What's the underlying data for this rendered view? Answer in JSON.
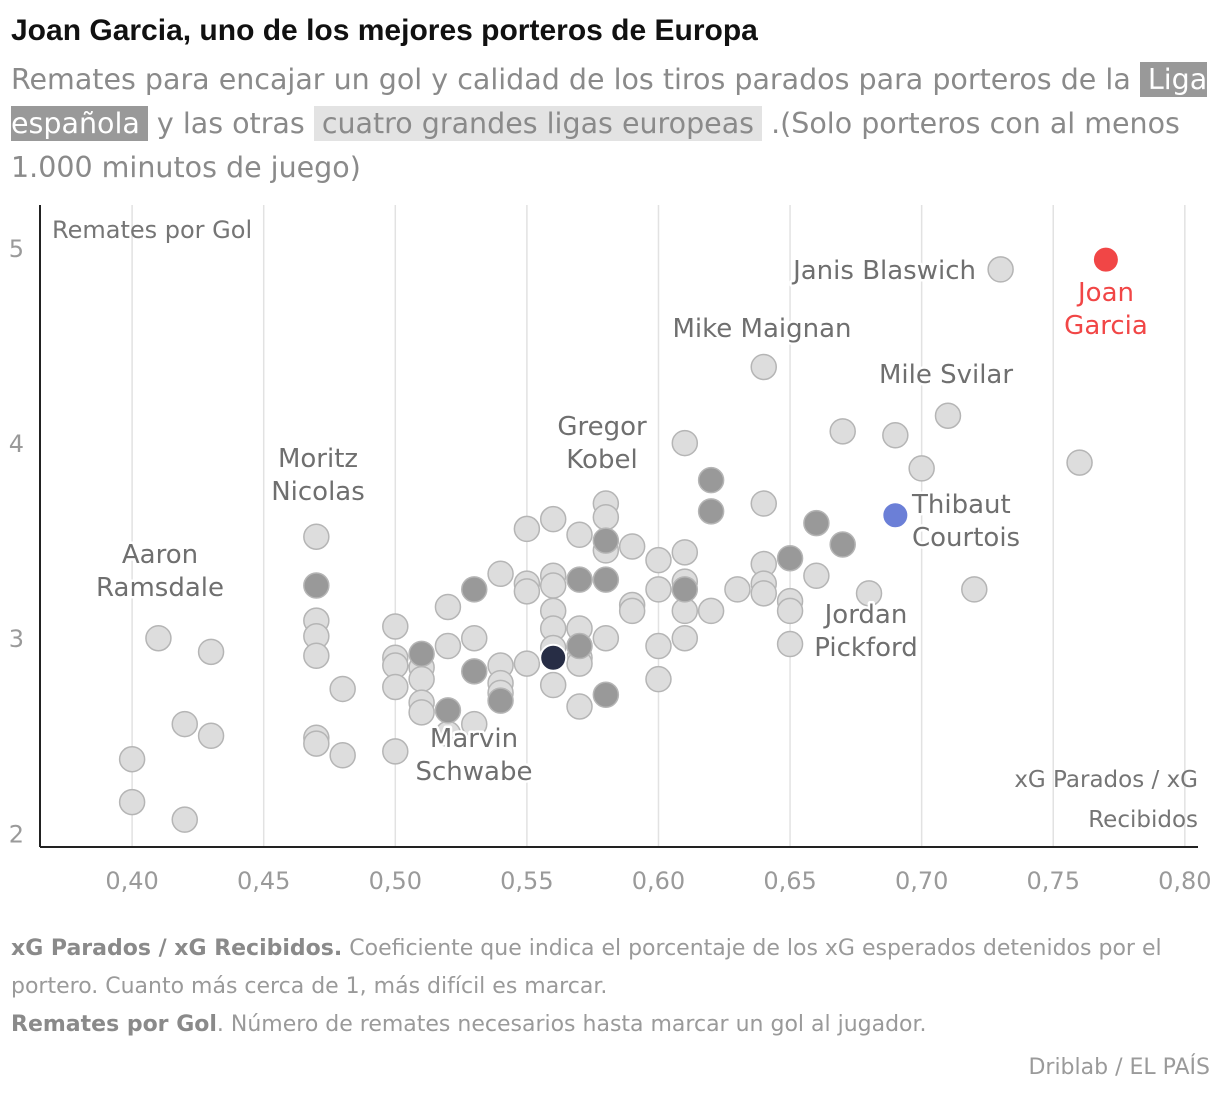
{
  "header": {
    "title": "Joan Garcia, uno de los mejores porteros de Europa",
    "subtitle_part1": "Remates para encajar un gol y calidad de los tiros parados para porteros de la",
    "chip_liga": "Liga española",
    "subtitle_part2": "y las otras",
    "chip_otras": "cuatro grandes ligas europeas",
    "subtitle_part3": ".(Solo porteros con al menos 1.000 minutos de juego)"
  },
  "notes": {
    "xg_term": "xG Parados / xG Recibidos.",
    "xg_text": "Coeficiente que indica el porcentaje de los xG esperados detenidos por el portero. Cuanto más cerca de 1, más difícil es marcar.",
    "rem_term": "Remates por Gol",
    "rem_text": ". Número de remates necesarios hasta marcar un gol al jugador."
  },
  "source": "Driblab / EL PAÍS",
  "colors": {
    "liga": "#999999",
    "otras": "#dddddd",
    "highlight": "#f14646",
    "courtois": "#6b7fd7",
    "dark": "#272d45"
  },
  "chart_data": {
    "type": "scatter",
    "xlabel_lines": [
      "xG Parados / xG",
      "Recibidos"
    ],
    "ylabel": "Remates por Gol",
    "xlim": [
      0.365,
      0.805
    ],
    "ylim": [
      1.93,
      5.22
    ],
    "xticks": [
      0.4,
      0.45,
      0.5,
      0.55,
      0.6,
      0.65,
      0.7,
      0.75,
      0.8
    ],
    "xtick_labels": [
      "0,40",
      "0,45",
      "0,50",
      "0,55",
      "0,60",
      "0,65",
      "0,70",
      "0,75",
      "0,80"
    ],
    "yticks": [
      2,
      3,
      4,
      5
    ],
    "ytick_labels": [
      "2",
      "3",
      "4",
      "5"
    ],
    "grid": "vertical",
    "series": [
      {
        "key": "otras",
        "points": [
          [
            0.4,
            2.38
          ],
          [
            0.4,
            2.16
          ],
          [
            0.41,
            3.0
          ],
          [
            0.42,
            2.56
          ],
          [
            0.42,
            2.07
          ],
          [
            0.43,
            2.93
          ],
          [
            0.43,
            2.5
          ],
          [
            0.47,
            3.52
          ],
          [
            0.47,
            3.09
          ],
          [
            0.47,
            3.01
          ],
          [
            0.47,
            2.91
          ],
          [
            0.47,
            2.49
          ],
          [
            0.47,
            2.46
          ],
          [
            0.48,
            2.74
          ],
          [
            0.48,
            2.4
          ],
          [
            0.5,
            3.06
          ],
          [
            0.5,
            2.9
          ],
          [
            0.5,
            2.86
          ],
          [
            0.5,
            2.75
          ],
          [
            0.5,
            2.42
          ],
          [
            0.51,
            2.85
          ],
          [
            0.51,
            2.79
          ],
          [
            0.51,
            2.67
          ],
          [
            0.51,
            2.62
          ],
          [
            0.52,
            3.16
          ],
          [
            0.52,
            2.96
          ],
          [
            0.52,
            2.51
          ],
          [
            0.53,
            3.0
          ],
          [
            0.53,
            2.56
          ],
          [
            0.54,
            3.33
          ],
          [
            0.54,
            2.86
          ],
          [
            0.54,
            2.77
          ],
          [
            0.54,
            2.72
          ],
          [
            0.55,
            3.56
          ],
          [
            0.55,
            3.28
          ],
          [
            0.55,
            3.24
          ],
          [
            0.55,
            2.87
          ],
          [
            0.56,
            3.61
          ],
          [
            0.56,
            3.32
          ],
          [
            0.56,
            3.27
          ],
          [
            0.56,
            3.14
          ],
          [
            0.56,
            3.05
          ],
          [
            0.56,
            2.95
          ],
          [
            0.56,
            2.76
          ],
          [
            0.57,
            3.53
          ],
          [
            0.57,
            3.05
          ],
          [
            0.57,
            2.9
          ],
          [
            0.57,
            2.87
          ],
          [
            0.57,
            2.65
          ],
          [
            0.58,
            3.69
          ],
          [
            0.58,
            3.62
          ],
          [
            0.58,
            3.45
          ],
          [
            0.58,
            3.0
          ],
          [
            0.59,
            3.47
          ],
          [
            0.59,
            3.17
          ],
          [
            0.59,
            3.14
          ],
          [
            0.6,
            3.4
          ],
          [
            0.6,
            3.25
          ],
          [
            0.6,
            2.96
          ],
          [
            0.6,
            2.79
          ],
          [
            0.61,
            4.0
          ],
          [
            0.61,
            3.44
          ],
          [
            0.61,
            3.29
          ],
          [
            0.61,
            3.14
          ],
          [
            0.61,
            3.0
          ],
          [
            0.62,
            3.14
          ],
          [
            0.63,
            3.25
          ],
          [
            0.64,
            4.39
          ],
          [
            0.64,
            3.69
          ],
          [
            0.64,
            3.38
          ],
          [
            0.64,
            3.28
          ],
          [
            0.64,
            3.23
          ],
          [
            0.65,
            3.19
          ],
          [
            0.65,
            3.14
          ],
          [
            0.65,
            2.97
          ],
          [
            0.66,
            3.32
          ],
          [
            0.67,
            4.06
          ],
          [
            0.68,
            3.23
          ],
          [
            0.69,
            4.04
          ],
          [
            0.7,
            3.87
          ],
          [
            0.71,
            4.14
          ],
          [
            0.72,
            3.25
          ],
          [
            0.73,
            4.89
          ],
          [
            0.76,
            3.9
          ]
        ]
      },
      {
        "key": "liga",
        "points": [
          [
            0.47,
            3.27
          ],
          [
            0.51,
            2.92
          ],
          [
            0.52,
            2.63
          ],
          [
            0.53,
            3.25
          ],
          [
            0.53,
            2.83
          ],
          [
            0.54,
            2.68
          ],
          [
            0.57,
            3.3
          ],
          [
            0.57,
            2.96
          ],
          [
            0.58,
            3.5
          ],
          [
            0.58,
            3.3
          ],
          [
            0.58,
            2.71
          ],
          [
            0.61,
            3.25
          ],
          [
            0.62,
            3.81
          ],
          [
            0.62,
            3.65
          ],
          [
            0.65,
            3.41
          ],
          [
            0.66,
            3.59
          ],
          [
            0.67,
            3.48
          ]
        ]
      }
    ],
    "highlights": [
      {
        "key": "highlight",
        "x": 0.77,
        "y": 4.94
      },
      {
        "key": "courtois",
        "x": 0.69,
        "y": 3.63
      },
      {
        "key": "dark",
        "x": 0.56,
        "y": 2.9
      }
    ],
    "annotations": [
      {
        "name": "janis-blaswich-label",
        "lines": [
          "Janis Blaswich"
        ]
      },
      {
        "name": "joan-garcia-label",
        "lines": [
          "Joan",
          "Garcia"
        ]
      },
      {
        "name": "mike-maignan-label",
        "lines": [
          "Mike Maignan"
        ]
      },
      {
        "name": "mile-svilar-label",
        "lines": [
          "Mile Svilar"
        ]
      },
      {
        "name": "gregor-kobel-label",
        "lines": [
          "Gregor",
          "Kobel"
        ]
      },
      {
        "name": "moritz-nicolas-label",
        "lines": [
          "Moritz",
          "Nicolas"
        ]
      },
      {
        "name": "thibaut-courtois-label",
        "lines": [
          "Thibaut",
          "Courtois"
        ]
      },
      {
        "name": "aaron-ramsdale-label",
        "lines": [
          "Aaron",
          "Ramsdale"
        ]
      },
      {
        "name": "jordan-pickford-label",
        "lines": [
          "Jordan",
          "Pickford"
        ]
      },
      {
        "name": "marvin-schwabe-label",
        "lines": [
          "Marvin",
          "Schwabe"
        ]
      }
    ]
  }
}
